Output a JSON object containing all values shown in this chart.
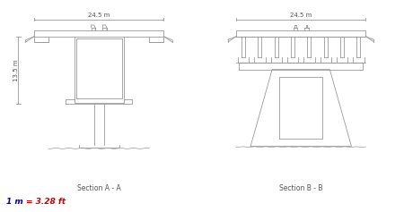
{
  "section_a_label": "Section A - A",
  "section_b_label": "Section B - B",
  "dim_label_width": "24.5 m",
  "dim_label_height": "13.5 m",
  "note_1m": "1 m",
  "note_eq": " = ",
  "note_ft": "3.28 ft",
  "note_color_1m": "#0000bb",
  "note_color_eq": "#000000",
  "note_color_ft": "#cc0000",
  "bg_color": "#ffffff",
  "line_color": "#999999",
  "line_width": 0.6,
  "label_color": "#555555",
  "label_fontsize": 5
}
